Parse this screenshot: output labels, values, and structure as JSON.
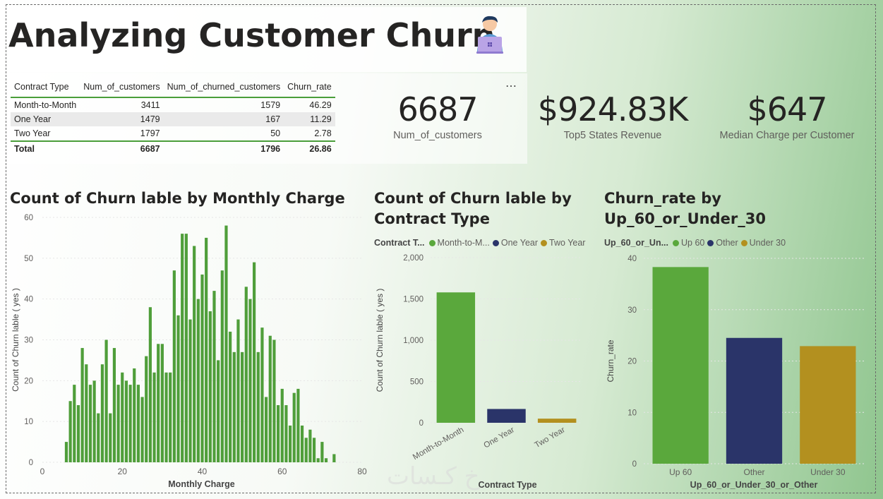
{
  "title": "Analyzing Customer Churn",
  "more_label": "…",
  "table": {
    "headers": [
      "Contract Type",
      "Num_of_customers",
      "Num_of_churned_customers",
      "Churn_rate"
    ],
    "rows": [
      [
        "Month-to-Month",
        "3411",
        "1579",
        "46.29"
      ],
      [
        "One Year",
        "1479",
        "167",
        "11.29"
      ],
      [
        "Two Year",
        "1797",
        "50",
        "2.78"
      ]
    ],
    "total": [
      "Total",
      "6687",
      "1796",
      "26.86"
    ]
  },
  "kpis": [
    {
      "value": "6687",
      "label": "Num_of_customers"
    },
    {
      "value": "$924.83K",
      "label": "Top5 States Revenue"
    },
    {
      "value": "$647",
      "label": "Median Charge per Customer"
    }
  ],
  "chart_data": [
    {
      "type": "bar",
      "title": "Count of Churn lable by Monthly Charge",
      "xlabel": "Monthly Charge",
      "ylabel": "Count of Churn lable ( yes )",
      "xlim": [
        0,
        80
      ],
      "xticks": [
        0,
        20,
        40,
        60,
        80
      ],
      "ylim": [
        0,
        60
      ],
      "yticks": [
        0,
        10,
        20,
        30,
        40,
        50,
        60
      ],
      "color": "#4f9e3a",
      "x": [
        6,
        7,
        8,
        9,
        10,
        11,
        12,
        13,
        14,
        15,
        16,
        17,
        18,
        19,
        20,
        21,
        22,
        23,
        24,
        25,
        26,
        27,
        28,
        29,
        30,
        31,
        32,
        33,
        34,
        35,
        36,
        37,
        38,
        39,
        40,
        41,
        42,
        43,
        44,
        45,
        46,
        47,
        48,
        49,
        50,
        51,
        52,
        53,
        54,
        55,
        56,
        57,
        58,
        59,
        60,
        61,
        62,
        63,
        64,
        65,
        66,
        67,
        68,
        69,
        70,
        71,
        73
      ],
      "values": [
        5,
        15,
        19,
        14,
        28,
        24,
        19,
        20,
        12,
        24,
        30,
        12,
        28,
        19,
        22,
        20,
        19,
        23,
        19,
        16,
        26,
        38,
        22,
        29,
        29,
        22,
        22,
        47,
        36,
        56,
        56,
        35,
        53,
        40,
        46,
        55,
        37,
        42,
        25,
        47,
        58,
        32,
        27,
        35,
        27,
        43,
        40,
        49,
        27,
        33,
        16,
        31,
        30,
        14,
        18,
        14,
        9,
        17,
        18,
        9,
        6,
        8,
        6,
        1,
        5,
        1,
        2
      ]
    },
    {
      "type": "bar",
      "title": "Count of Churn lable by Contract Type",
      "legend_title": "Contract T...",
      "legend": [
        "Month-to-M...",
        "One Year",
        "Two Year"
      ],
      "xlabel": "Contract Type",
      "ylabel": "Count of Churn lable ( yes )",
      "categories": [
        "Month-to-Month",
        "One Year",
        "Two Year"
      ],
      "values": [
        1579,
        167,
        50
      ],
      "colors": [
        "#5aa83c",
        "#2a3469",
        "#b3901f"
      ],
      "ylim": [
        0,
        2000
      ],
      "yticks": [
        0,
        500,
        1000,
        1500,
        2000
      ],
      "ytick_labels": [
        "0",
        "500",
        "1,000",
        "1,500",
        "2,000"
      ]
    },
    {
      "type": "bar",
      "title": "Churn_rate by Up_60_or_Under_30",
      "legend_title": "Up_60_or_Un...",
      "legend": [
        "Up 60",
        "Other",
        "Under 30"
      ],
      "xlabel": "Up_60_or_Under_30_or_Other",
      "ylabel": "Churn_rate",
      "categories": [
        "Up 60",
        "Other",
        "Under 30"
      ],
      "values": [
        38.3,
        24.5,
        22.9
      ],
      "colors": [
        "#5aa83c",
        "#2a3469",
        "#b3901f"
      ],
      "ylim": [
        0,
        40
      ],
      "yticks": [
        0,
        10,
        20,
        30,
        40
      ]
    }
  ]
}
